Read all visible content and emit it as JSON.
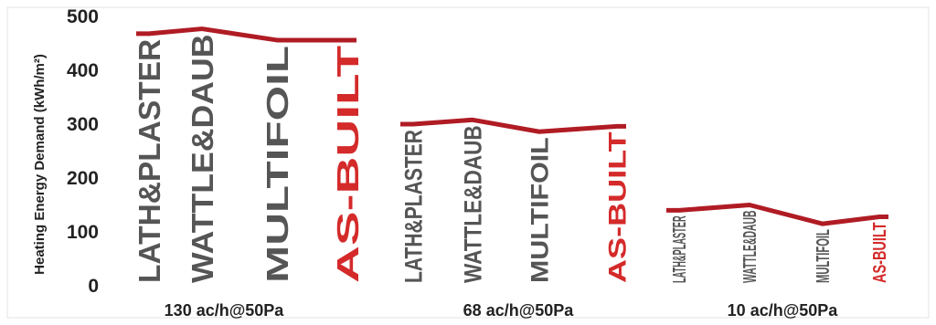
{
  "chart_data": {
    "type": "line",
    "ylabel": "Heating Energy Demand (kWh/m²)",
    "ylim": [
      0,
      500
    ],
    "yticks": [
      "0",
      "100",
      "200",
      "300",
      "400",
      "500"
    ],
    "grid": false,
    "categories": [
      "130 ac/h@50Pa",
      "68 ac/h@50Pa",
      "10 ac/h@50Pa"
    ],
    "groups": [
      {
        "category": "130 ac/h@50Pa",
        "labels": [
          "LATH&PLASTER",
          "WATTLE&DAUB",
          "MULTIFOIL",
          "AS-BUILT"
        ],
        "values": [
          468,
          477,
          456,
          456
        ]
      },
      {
        "category": "68 ac/h@50Pa",
        "labels": [
          "LATH&PLASTER",
          "WATTLE&DAUB",
          "MULTIFOIL",
          "AS-BUILT"
        ],
        "values": [
          300,
          308,
          286,
          296
        ]
      },
      {
        "category": "10 ac/h@50Pa",
        "labels": [
          "LATH&PLASTER",
          "WATTLE&DAUB",
          "MULTIFOIL",
          "AS-BUILT"
        ],
        "values": [
          140,
          150,
          115,
          128
        ]
      }
    ],
    "colors": {
      "line": "#b01c24",
      "label": "#555555",
      "highlight": "#d42a2a",
      "axis": "#222222",
      "frame": "#d9d9d9"
    }
  }
}
